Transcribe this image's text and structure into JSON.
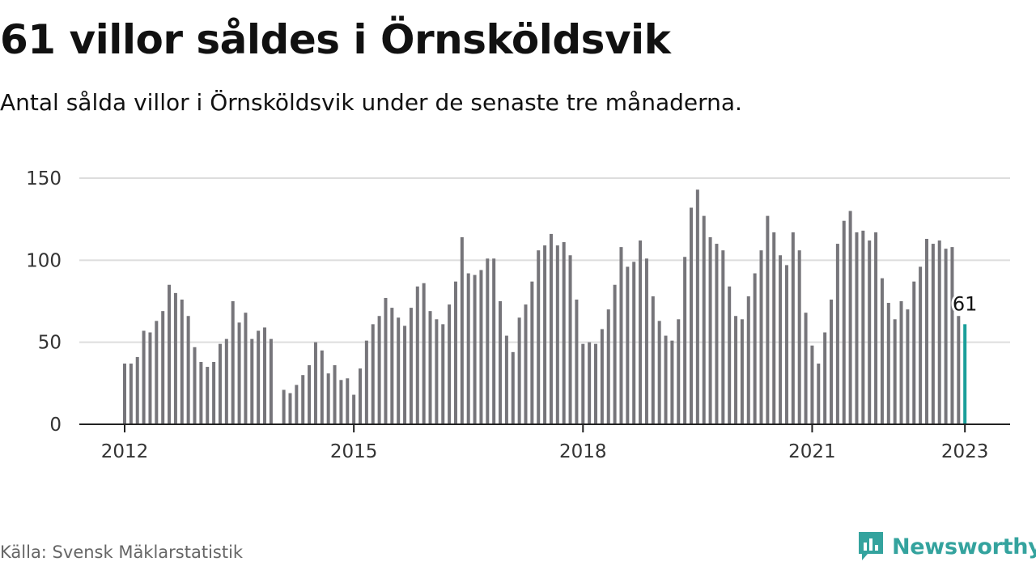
{
  "title": "61 villor såldes i Örnsköldsvik",
  "subtitle": "Antal sålda villor i Örnsköldsvik under de senaste tre månaderna.",
  "source": "Källa: Svensk Mäklarstatistik",
  "brand": "Newsworthy",
  "colors": {
    "bar": "#76757a",
    "highlight": "#1a9f9a",
    "grid": "#dddddd",
    "brand": "#34a39e"
  },
  "chart_data": {
    "type": "bar",
    "title": "61 villor såldes i Örnsköldsvik",
    "xlabel": "",
    "ylabel": "",
    "ylim": [
      0,
      150
    ],
    "y_ticks": [
      0,
      50,
      100,
      150
    ],
    "x_ticks": [
      "2012",
      "2015",
      "2018",
      "2021",
      "2023"
    ],
    "grid": true,
    "start": "2012-01",
    "highlight_label": "61",
    "values": [
      37,
      37,
      41,
      57,
      56,
      63,
      69,
      85,
      80,
      76,
      66,
      47,
      38,
      35,
      38,
      49,
      52,
      75,
      62,
      68,
      52,
      57,
      59,
      52,
      null,
      21,
      19,
      24,
      30,
      36,
      50,
      45,
      31,
      36,
      27,
      28,
      18,
      34,
      51,
      61,
      66,
      77,
      71,
      65,
      60,
      71,
      84,
      86,
      69,
      64,
      61,
      73,
      87,
      114,
      92,
      91,
      94,
      101,
      101,
      75,
      54,
      44,
      65,
      73,
      87,
      106,
      109,
      116,
      109,
      111,
      103,
      76,
      49,
      50,
      49,
      58,
      70,
      85,
      108,
      96,
      99,
      112,
      101,
      78,
      63,
      54,
      51,
      64,
      102,
      132,
      143,
      127,
      114,
      110,
      106,
      84,
      66,
      64,
      78,
      92,
      106,
      127,
      117,
      103,
      97,
      117,
      106,
      68,
      48,
      37,
      56,
      76,
      110,
      124,
      130,
      117,
      118,
      112,
      117,
      89,
      74,
      64,
      75,
      70,
      87,
      96,
      113,
      110,
      112,
      107,
      108,
      66,
      61
    ]
  }
}
